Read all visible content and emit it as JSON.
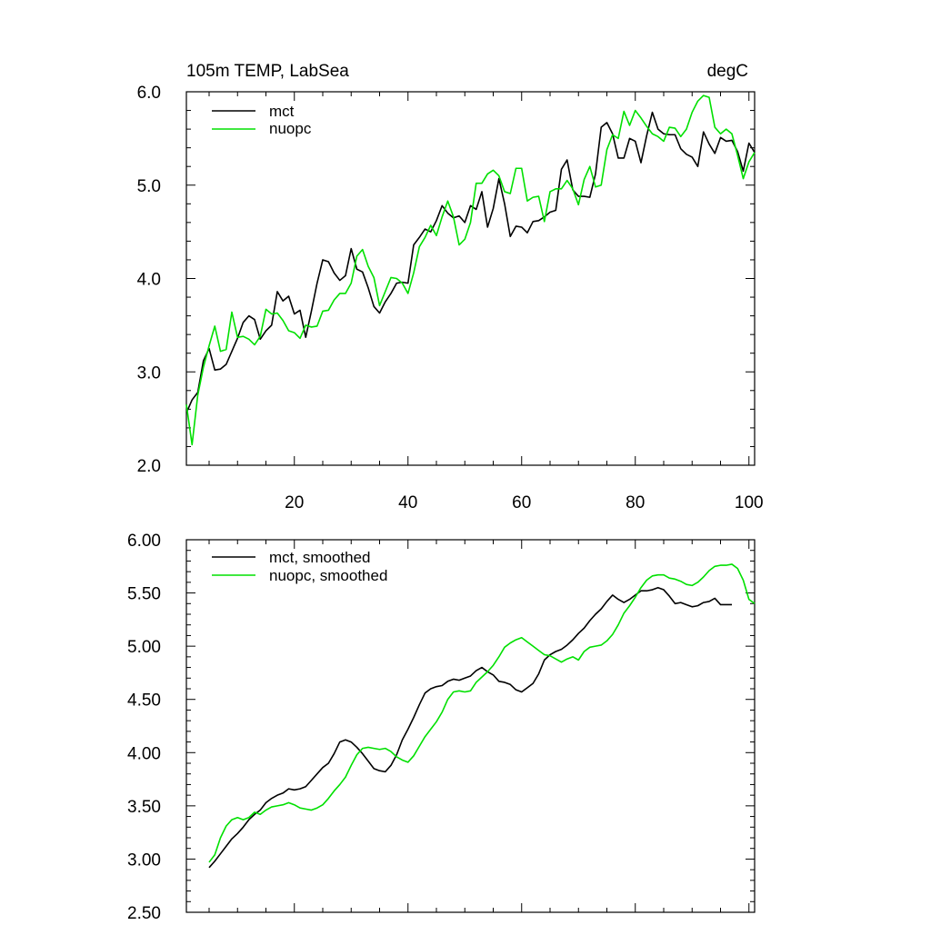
{
  "chart_data": [
    {
      "type": "line",
      "title": "105m TEMP, LabSea",
      "units": "degC",
      "xlim": [
        1,
        101
      ],
      "ylim": [
        2.0,
        6.0
      ],
      "x_ticks": [
        20,
        40,
        60,
        80,
        100
      ],
      "x_tick_labels": [
        "20",
        "40",
        "60",
        "80",
        "100"
      ],
      "y_ticks": [
        2.0,
        3.0,
        4.0,
        5.0,
        6.0
      ],
      "y_tick_labels": [
        "2.0",
        "3.0",
        "4.0",
        "5.0",
        "6.0"
      ],
      "legend_position": "top-left",
      "x_start": 1,
      "series": [
        {
          "name": "mct",
          "color": "#000000",
          "values": [
            2.56,
            2.7,
            2.78,
            3.12,
            3.25,
            3.02,
            3.03,
            3.08,
            3.22,
            3.36,
            3.53,
            3.6,
            3.56,
            3.35,
            3.44,
            3.5,
            3.86,
            3.76,
            3.81,
            3.62,
            3.66,
            3.37,
            3.65,
            3.95,
            4.2,
            4.18,
            4.06,
            3.98,
            4.03,
            4.32,
            4.1,
            4.07,
            3.9,
            3.7,
            3.63,
            3.75,
            3.84,
            3.95,
            3.96,
            3.95,
            4.36,
            4.44,
            4.53,
            4.5,
            4.62,
            4.78,
            4.7,
            4.65,
            4.67,
            4.6,
            4.78,
            4.74,
            4.93,
            4.55,
            4.75,
            5.07,
            4.8,
            4.45,
            4.56,
            4.55,
            4.49,
            4.61,
            4.62,
            4.66,
            4.71,
            4.73,
            5.17,
            5.27,
            4.95,
            4.88,
            4.88,
            4.87,
            5.12,
            5.62,
            5.67,
            5.55,
            5.29,
            5.29,
            5.5,
            5.47,
            5.24,
            5.53,
            5.78,
            5.6,
            5.55,
            5.54,
            5.54,
            5.39,
            5.33,
            5.3,
            5.2,
            5.57,
            5.44,
            5.34,
            5.51,
            5.47,
            5.48,
            5.36,
            5.15,
            5.45,
            5.35
          ]
        },
        {
          "name": "nuopc",
          "color": "#00e000",
          "values": [
            2.65,
            2.22,
            2.75,
            3.05,
            3.28,
            3.49,
            3.22,
            3.24,
            3.64,
            3.37,
            3.38,
            3.35,
            3.29,
            3.38,
            3.67,
            3.62,
            3.63,
            3.55,
            3.44,
            3.42,
            3.36,
            3.5,
            3.48,
            3.49,
            3.65,
            3.66,
            3.77,
            3.84,
            3.84,
            3.95,
            4.24,
            4.31,
            4.13,
            4.01,
            3.71,
            3.86,
            4.01,
            4.0,
            3.95,
            3.84,
            4.06,
            4.34,
            4.44,
            4.57,
            4.46,
            4.66,
            4.83,
            4.66,
            4.36,
            4.42,
            4.6,
            5.02,
            5.02,
            5.12,
            5.16,
            5.1,
            4.93,
            4.91,
            5.18,
            5.18,
            4.83,
            4.87,
            4.88,
            4.61,
            4.93,
            4.96,
            4.96,
            5.05,
            4.96,
            4.79,
            5.06,
            5.2,
            4.98,
            5.0,
            5.38,
            5.54,
            5.5,
            5.79,
            5.64,
            5.8,
            5.72,
            5.63,
            5.55,
            5.52,
            5.47,
            5.62,
            5.61,
            5.52,
            5.6,
            5.78,
            5.9,
            5.96,
            5.94,
            5.62,
            5.55,
            5.6,
            5.55,
            5.32,
            5.07,
            5.25,
            5.35
          ]
        }
      ]
    },
    {
      "type": "line",
      "title": "",
      "xlim": [
        1,
        101
      ],
      "ylim": [
        2.5,
        6.0
      ],
      "x_ticks": [
        20,
        40,
        60,
        80,
        100
      ],
      "y_ticks": [
        2.5,
        3.0,
        3.5,
        4.0,
        4.5,
        5.0,
        5.5,
        6.0
      ],
      "y_tick_labels": [
        "2.50",
        "3.00",
        "3.50",
        "4.00",
        "4.50",
        "5.00",
        "5.50",
        "6.00"
      ],
      "legend_position": "top-left",
      "x_start": 5,
      "series": [
        {
          "name": "mct, smoothed",
          "color": "#000000",
          "values": [
            2.92,
            2.98,
            3.05,
            3.12,
            3.19,
            3.24,
            3.3,
            3.37,
            3.42,
            3.46,
            3.53,
            3.57,
            3.6,
            3.62,
            3.66,
            3.65,
            3.66,
            3.68,
            3.74,
            3.8,
            3.86,
            3.9,
            3.99,
            4.1,
            4.12,
            4.1,
            4.05,
            3.99,
            3.92,
            3.85,
            3.83,
            3.82,
            3.88,
            3.98,
            4.12,
            4.22,
            4.33,
            4.45,
            4.56,
            4.6,
            4.62,
            4.63,
            4.67,
            4.69,
            4.68,
            4.7,
            4.72,
            4.77,
            4.8,
            4.76,
            4.73,
            4.67,
            4.66,
            4.64,
            4.59,
            4.57,
            4.61,
            4.65,
            4.74,
            4.87,
            4.92,
            4.95,
            4.97,
            5.01,
            5.06,
            5.12,
            5.17,
            5.24,
            5.3,
            5.35,
            5.42,
            5.48,
            5.44,
            5.41,
            5.44,
            5.48,
            5.52,
            5.52,
            5.53,
            5.55,
            5.53,
            5.47,
            5.4,
            5.41,
            5.39,
            5.37,
            5.38,
            5.41,
            5.42,
            5.45,
            5.39,
            5.39,
            5.39
          ]
        },
        {
          "name": "nuopc, smoothed",
          "color": "#00e000",
          "values": [
            2.97,
            3.04,
            3.2,
            3.31,
            3.37,
            3.39,
            3.37,
            3.39,
            3.44,
            3.42,
            3.46,
            3.49,
            3.5,
            3.51,
            3.53,
            3.51,
            3.48,
            3.47,
            3.46,
            3.48,
            3.51,
            3.57,
            3.64,
            3.7,
            3.77,
            3.88,
            3.98,
            4.04,
            4.05,
            4.04,
            4.03,
            4.04,
            4.01,
            3.96,
            3.93,
            3.91,
            3.97,
            4.06,
            4.15,
            4.22,
            4.29,
            4.38,
            4.5,
            4.57,
            4.58,
            4.57,
            4.58,
            4.66,
            4.71,
            4.76,
            4.82,
            4.9,
            4.99,
            5.03,
            5.06,
            5.08,
            5.04,
            5.0,
            4.96,
            4.92,
            4.91,
            4.88,
            4.85,
            4.88,
            4.9,
            4.87,
            4.95,
            4.99,
            5.0,
            5.01,
            5.05,
            5.11,
            5.2,
            5.31,
            5.38,
            5.46,
            5.55,
            5.62,
            5.66,
            5.67,
            5.67,
            5.64,
            5.63,
            5.61,
            5.58,
            5.57,
            5.6,
            5.65,
            5.71,
            5.75,
            5.76,
            5.76,
            5.77,
            5.73,
            5.62,
            5.44,
            5.4
          ]
        }
      ]
    }
  ]
}
